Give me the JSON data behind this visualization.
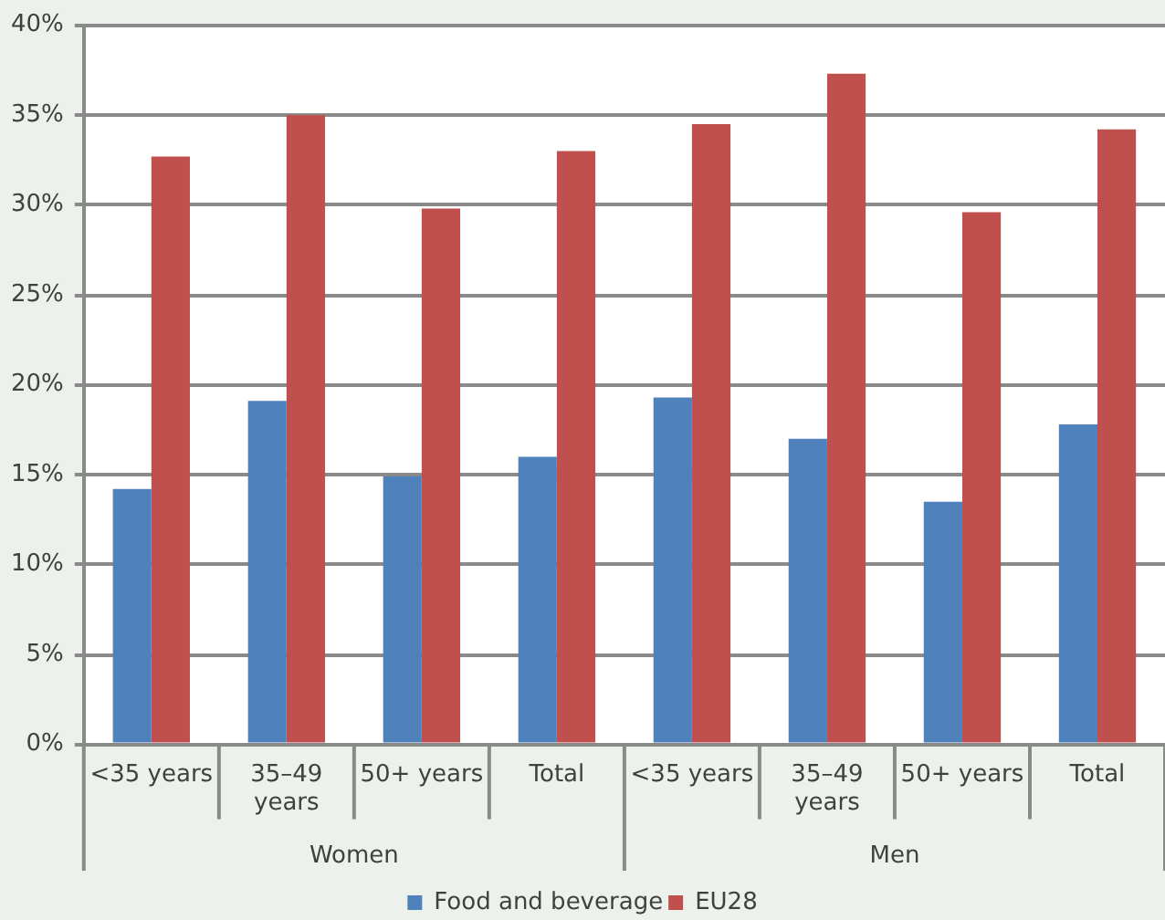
{
  "chart_data": {
    "type": "bar",
    "categories": [
      "<35 years",
      "35–49 years",
      "50+ years",
      "Total",
      "<35 years",
      "35–49 years",
      "50+ years",
      "Total"
    ],
    "series": [
      {
        "name": "Food and beverage",
        "color": "#4f81bd",
        "values": [
          14.2,
          19.1,
          14.9,
          16.0,
          19.3,
          17.0,
          13.5,
          17.8
        ]
      },
      {
        "name": "EU28",
        "color": "#c0504d",
        "values": [
          32.7,
          35.0,
          29.8,
          33.0,
          34.5,
          37.3,
          29.6,
          34.2
        ]
      }
    ],
    "ylim": [
      0,
      40
    ],
    "yticks": [
      {
        "value": 0,
        "label": "0%"
      },
      {
        "value": 5,
        "label": "5%"
      },
      {
        "value": 10,
        "label": "10%"
      },
      {
        "value": 15,
        "label": "15%"
      },
      {
        "value": 20,
        "label": "20%"
      },
      {
        "value": 25,
        "label": "25%"
      },
      {
        "value": 30,
        "label": "30%"
      },
      {
        "value": 35,
        "label": "35%"
      },
      {
        "value": 40,
        "label": "40%"
      }
    ],
    "grid": "y",
    "legend": "bottom",
    "annotations": [
      "Women",
      "Men"
    ]
  }
}
